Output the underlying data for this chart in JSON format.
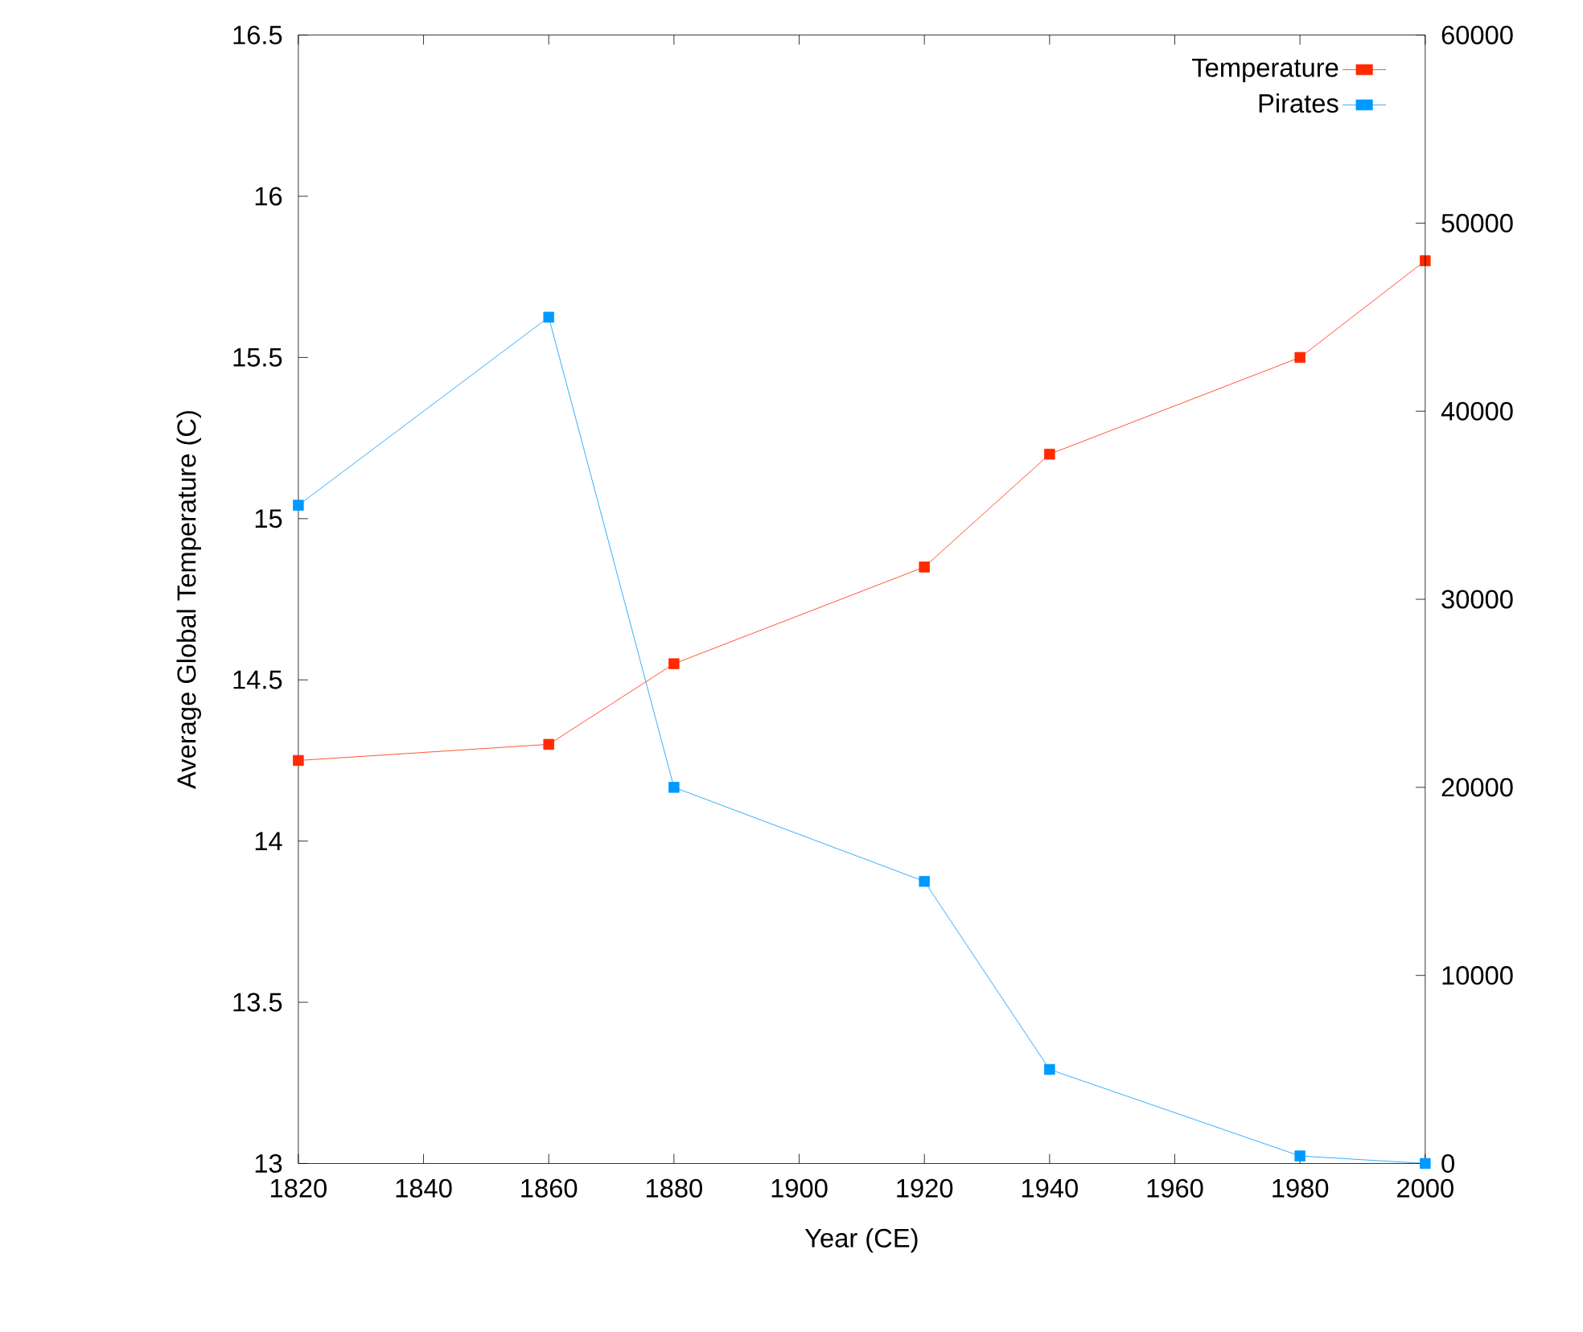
{
  "chart_data": {
    "type": "line",
    "xlabel": "Year (CE)",
    "ylabel": "Average Global Temperature (C)",
    "x": [
      1820,
      1860,
      1880,
      1920,
      1940,
      1980,
      2000
    ],
    "series": [
      {
        "name": "Temperature",
        "color": "#ff2a00",
        "values": [
          14.25,
          14.3,
          14.55,
          14.85,
          15.2,
          15.5,
          15.8
        ]
      },
      {
        "name": "Pirates",
        "color": "#0099ff",
        "axis": "y2",
        "values": [
          35000,
          45000,
          20000,
          15000,
          5000,
          400,
          0
        ]
      }
    ],
    "xlim": [
      1820,
      2000
    ],
    "xticks": [
      1820,
      1840,
      1860,
      1880,
      1900,
      1920,
      1940,
      1960,
      1980,
      2000
    ],
    "ylim": [
      13,
      16.5
    ],
    "yticks": [
      13,
      13.5,
      14,
      14.5,
      15,
      15.5,
      16,
      16.5
    ],
    "y2lim": [
      0,
      60000
    ],
    "y2ticks": [
      0,
      10000,
      20000,
      30000,
      40000,
      50000,
      60000
    ],
    "grid": false,
    "legend": "top right",
    "marker": "square",
    "line_style": "solid"
  }
}
